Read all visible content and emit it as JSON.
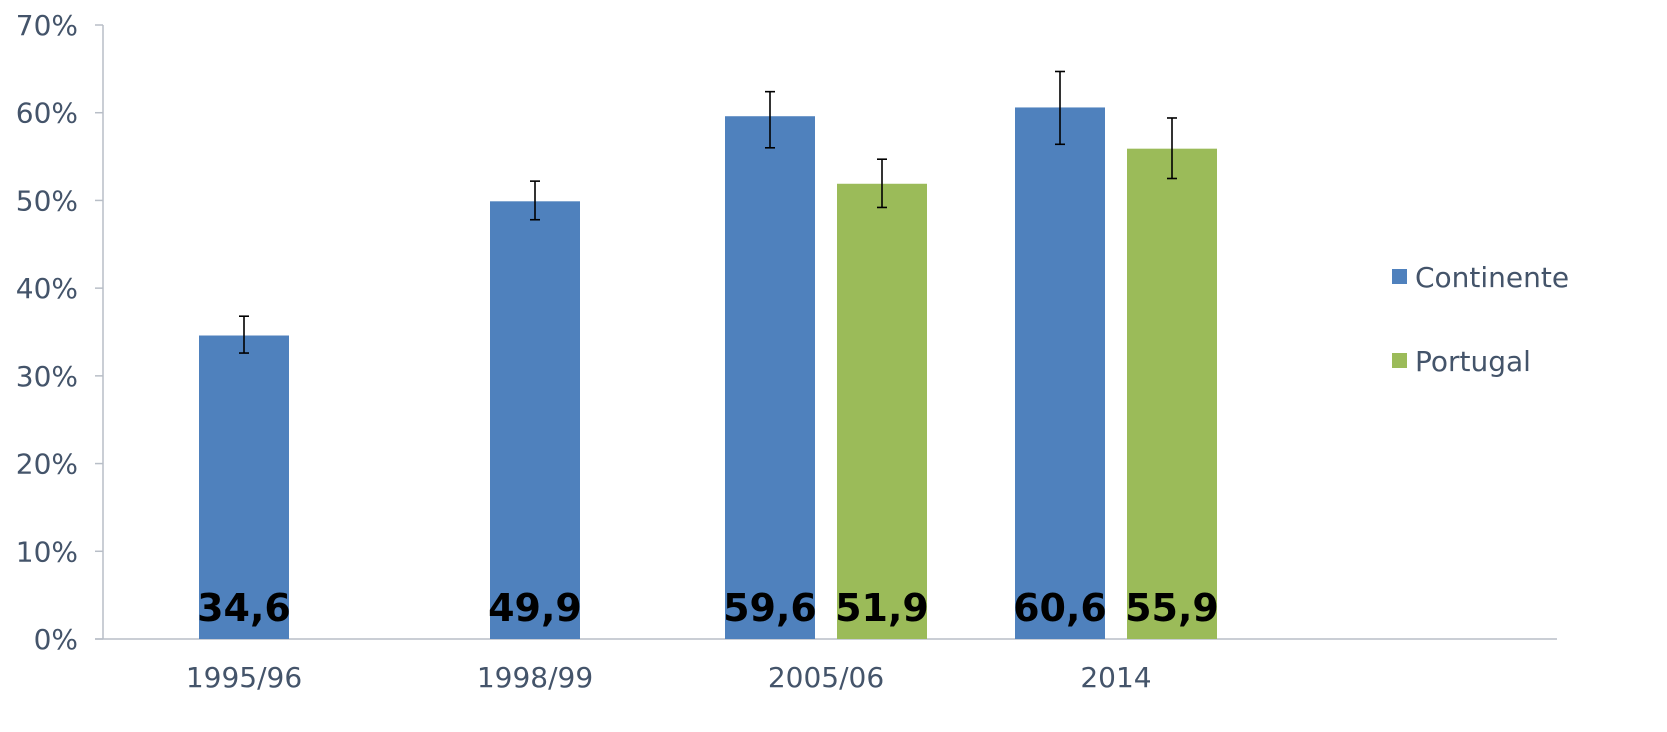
{
  "chart_data": {
    "type": "bar",
    "categories": [
      "1995/96",
      "1998/99",
      "2005/06",
      "2014"
    ],
    "series": [
      {
        "name": "Continente",
        "color": "#4f81bd",
        "values": [
          34.6,
          49.9,
          59.6,
          60.6
        ],
        "labels": [
          "34,6",
          "49,9",
          "59,6",
          "60,6"
        ],
        "error_low": [
          32.6,
          47.8,
          56.0,
          56.4
        ],
        "error_high": [
          36.8,
          52.2,
          62.4,
          64.7
        ]
      },
      {
        "name": "Portugal",
        "color": "#9bbb59",
        "values": [
          null,
          null,
          51.9,
          55.9
        ],
        "labels": [
          null,
          null,
          "51,9",
          "55,9"
        ],
        "error_low": [
          null,
          null,
          49.2,
          52.5
        ],
        "error_high": [
          null,
          null,
          54.7,
          59.4
        ]
      }
    ],
    "yticks": [
      "0%",
      "10%",
      "20%",
      "30%",
      "40%",
      "50%",
      "60%",
      "70%"
    ],
    "ylim": [
      0,
      70
    ],
    "ystep": 10,
    "title": "",
    "xlabel": "",
    "ylabel": "",
    "legend_position": "right",
    "grid": false
  }
}
